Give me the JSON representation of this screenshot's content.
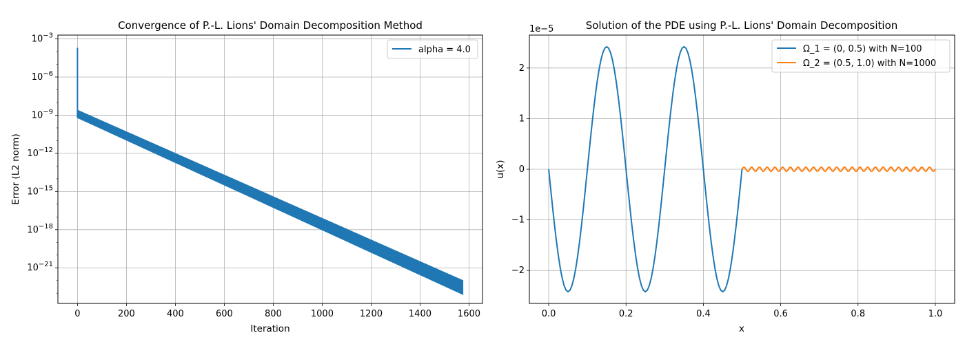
{
  "chart_data": [
    {
      "type": "line",
      "title": "Convergence of P.-L. Lions' Domain Decomposition Method",
      "xlabel": "Iteration",
      "ylabel": "Error (L2 norm)",
      "yscale": "log",
      "xlim": [
        -80,
        1655
      ],
      "ylim_exponents": [
        -23.8,
        -2.7
      ],
      "xticks": [
        0,
        200,
        400,
        600,
        800,
        1000,
        1200,
        1400,
        1600
      ],
      "xtick_labels": [
        "0",
        "200",
        "400",
        "600",
        "800",
        "1000",
        "1200",
        "1400",
        "1600"
      ],
      "ytick_exponents": [
        -3,
        -6,
        -9,
        -12,
        -15,
        -18,
        -21
      ],
      "ytick_labels": [
        {
          "base": "10",
          "exp": "−3"
        },
        {
          "base": "10",
          "exp": "−6"
        },
        {
          "base": "10",
          "exp": "−9"
        },
        {
          "base": "10",
          "exp": "−12"
        },
        {
          "base": "10",
          "exp": "−15"
        },
        {
          "base": "10",
          "exp": "−18"
        },
        {
          "base": "10",
          "exp": "−21"
        }
      ],
      "grid": true,
      "legend_position": "top-right",
      "series": [
        {
          "name": "alpha = 4.0",
          "color": "#1f77b4",
          "initial_spike": {
            "iteration": 0,
            "error_exponent": -3.7
          },
          "band": {
            "start_iteration": 0,
            "end_iteration": 1575,
            "upper_exponent": [
              -8.6,
              -22.0
            ],
            "lower_exponent": [
              -9.2,
              -23.1
            ]
          }
        }
      ]
    },
    {
      "type": "line",
      "title": "Solution of the PDE using P.-L. Lions' Domain Decomposition",
      "xlabel": "x",
      "ylabel": "u(x)",
      "offset_text": "1e−5",
      "xlim": [
        -0.05,
        1.05
      ],
      "ylim": [
        -2.65,
        2.65
      ],
      "y_unit_scale": "1e-5",
      "xticks": [
        0.0,
        0.2,
        0.4,
        0.6,
        0.8,
        1.0
      ],
      "xtick_labels": [
        "0.0",
        "0.2",
        "0.4",
        "0.6",
        "0.8",
        "1.0"
      ],
      "yticks": [
        -2,
        -1,
        0,
        1,
        2
      ],
      "ytick_labels": [
        "−2",
        "−1",
        "0",
        "1",
        "2"
      ],
      "grid": true,
      "legend_position": "top-right",
      "series": [
        {
          "name": "Ω_1 = (0, 0.5) with N=100",
          "color": "#1f77b4",
          "x_range": [
            0.0,
            0.5
          ],
          "samples": 100,
          "function": "-2.42 * sin(10*pi*x)",
          "peak_value": 2.42
        },
        {
          "name": "Ω_2 = (0.5, 1.0) with N=1000",
          "color": "#ff7f0e",
          "x_range": [
            0.5,
            1.0
          ],
          "samples": 1000,
          "function": "0.04 * sin(100*pi*x)",
          "peak_value": 0.04
        }
      ]
    }
  ]
}
